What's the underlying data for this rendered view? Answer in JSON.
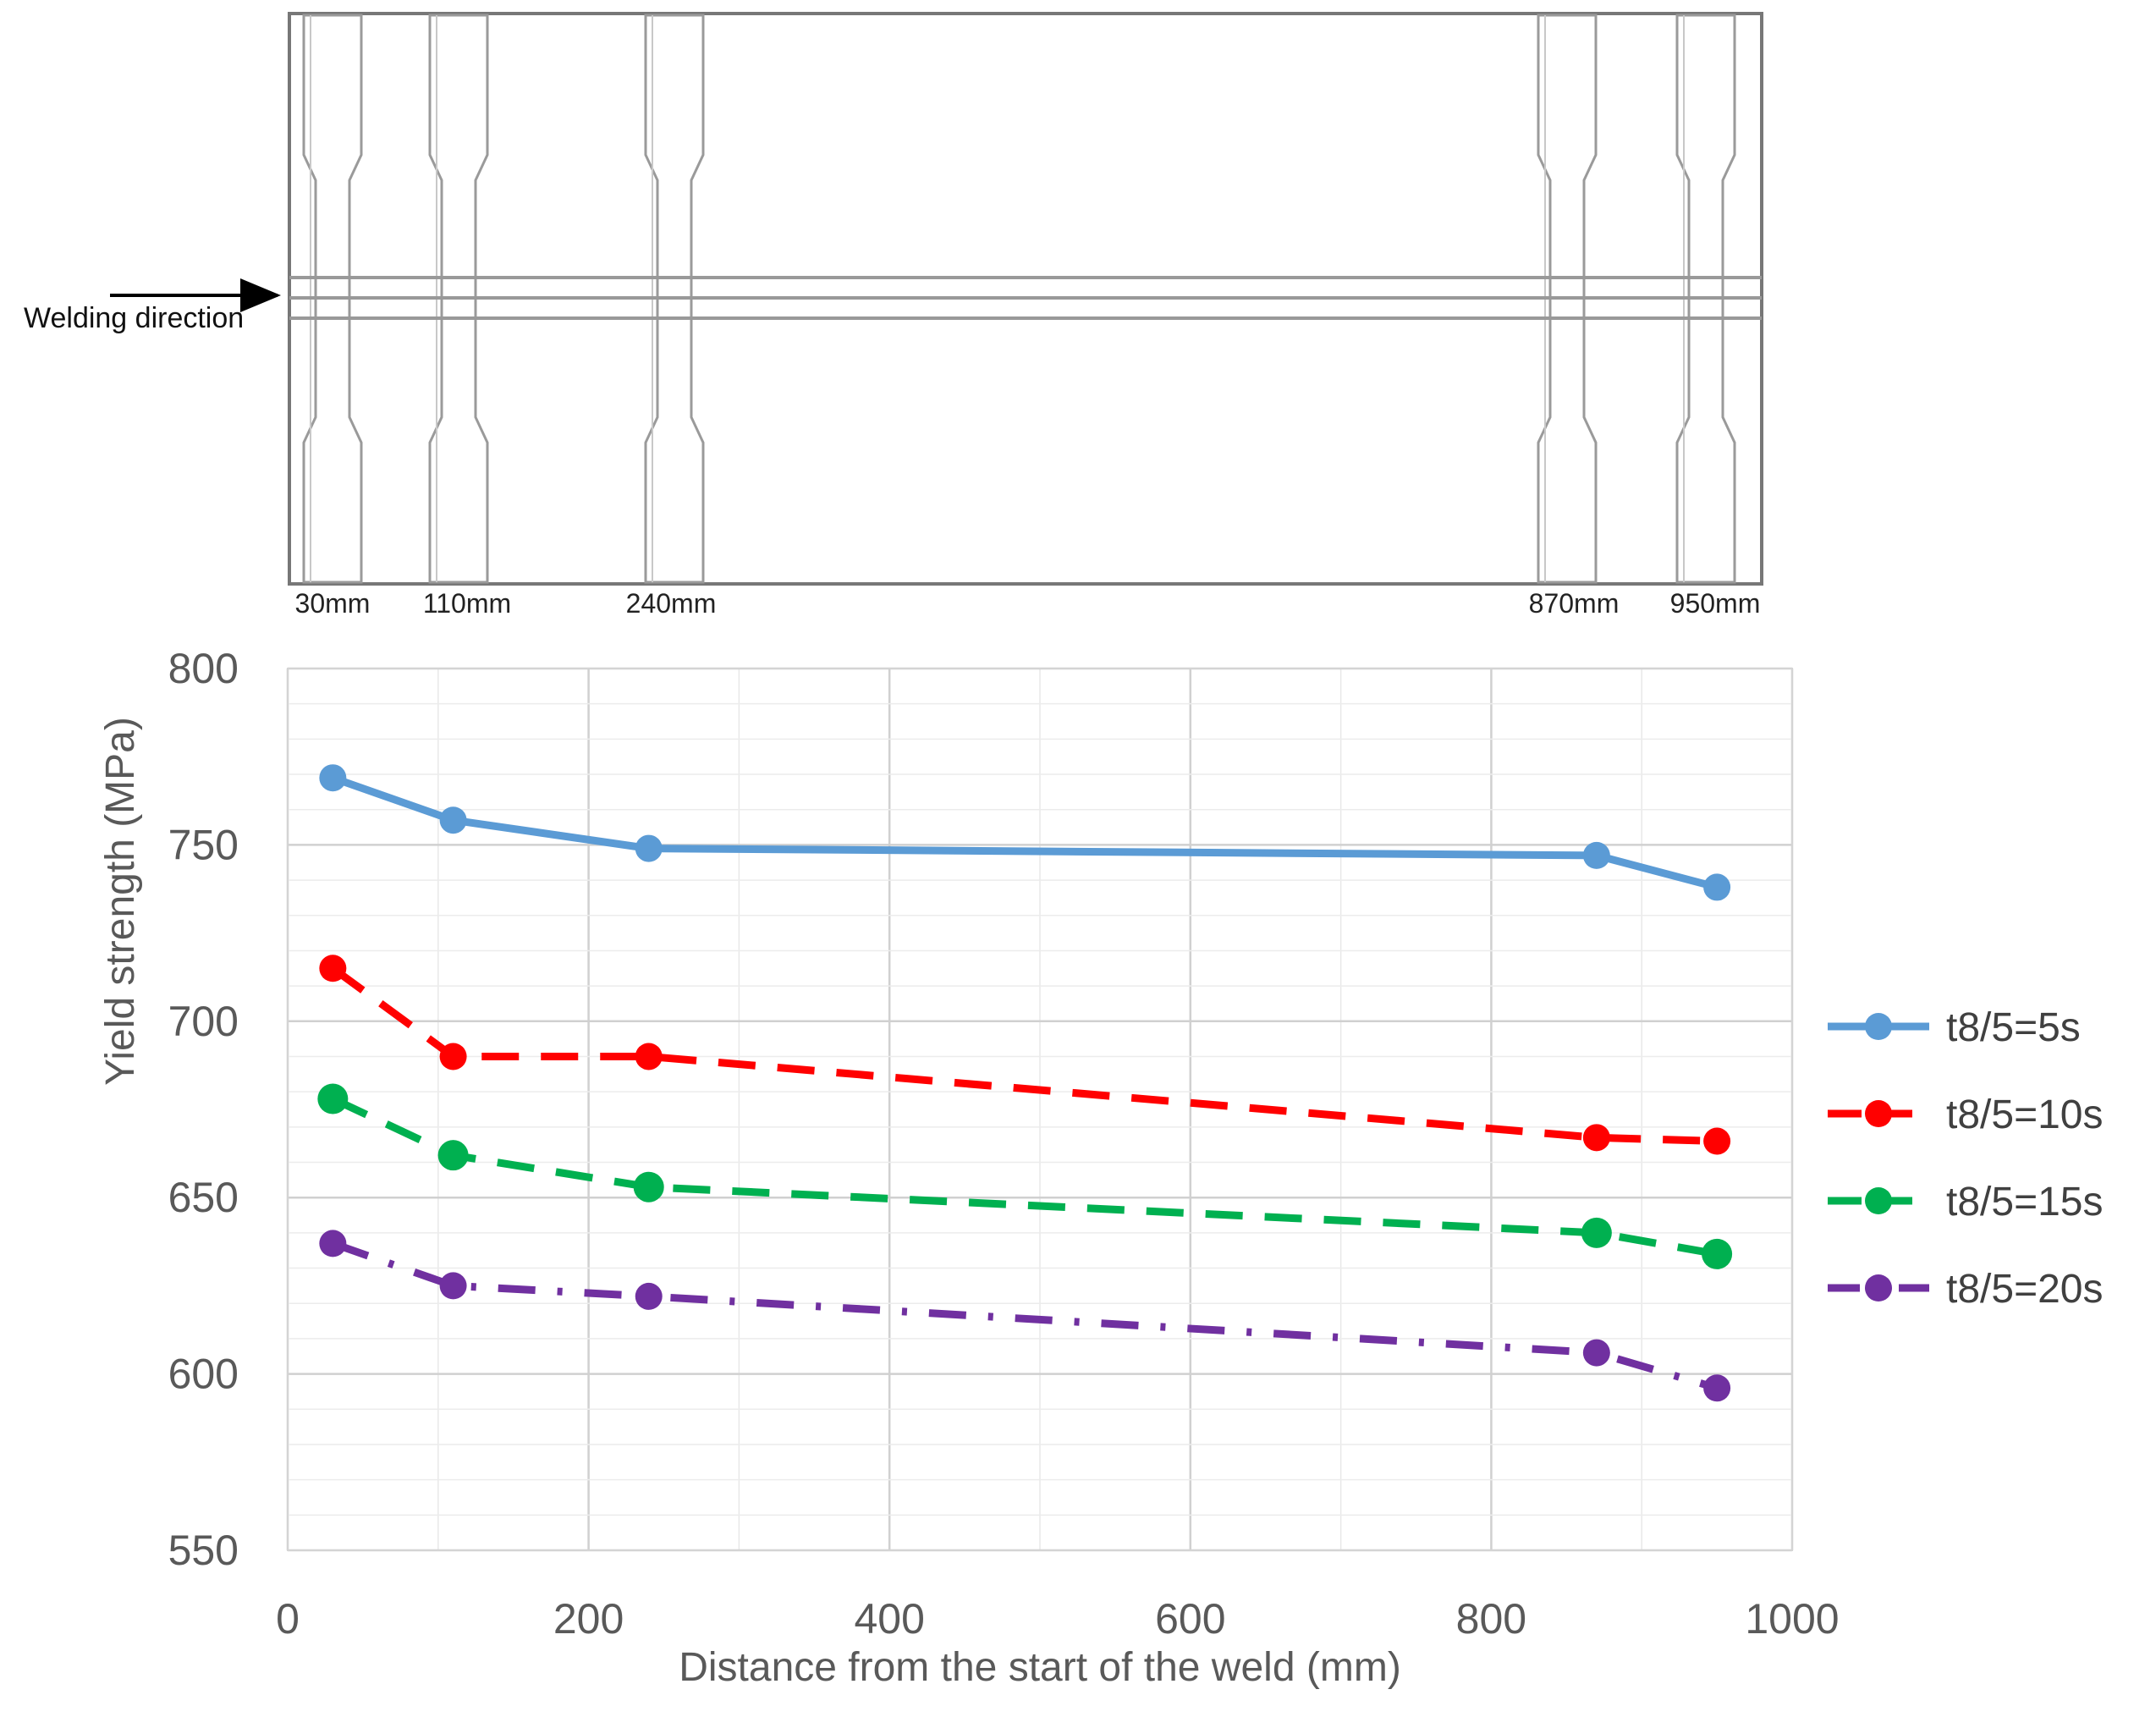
{
  "diagram": {
    "direction_label": "Welding direction",
    "positions": [
      {
        "label": "30mm",
        "mm": 30
      },
      {
        "label": "110mm",
        "mm": 110
      },
      {
        "label": "240mm",
        "mm": 240
      },
      {
        "label": "870mm",
        "mm": 870
      },
      {
        "label": "950mm",
        "mm": 950
      }
    ]
  },
  "chart_data": {
    "type": "line",
    "title": "",
    "xlabel": "Distance from the start of the weld (mm)",
    "ylabel": "Yield strength (MPa)",
    "xlim": [
      0,
      1000
    ],
    "ylim": [
      550,
      800
    ],
    "x_ticks": [
      0,
      200,
      400,
      600,
      800,
      1000
    ],
    "y_ticks": [
      550,
      600,
      650,
      700,
      750,
      800
    ],
    "grid": true,
    "legend_position": "right",
    "x": [
      30,
      110,
      240,
      870,
      950
    ],
    "series": [
      {
        "name": "t8/5=5s",
        "color": "#5b9bd5",
        "dash": "solid",
        "values": [
          769,
          757,
          749,
          747,
          738
        ]
      },
      {
        "name": "t8/5=10s",
        "color": "#ff0000",
        "dash": "dash",
        "values": [
          715,
          690,
          690,
          667,
          666
        ]
      },
      {
        "name": "t8/5=15s",
        "color": "#00b050",
        "dash": "dash",
        "values": [
          678,
          662,
          653,
          640,
          634
        ]
      },
      {
        "name": "t8/5=20s",
        "color": "#7030a0",
        "dash": "dash-dot",
        "values": [
          637,
          625,
          622,
          606,
          596
        ]
      }
    ]
  }
}
